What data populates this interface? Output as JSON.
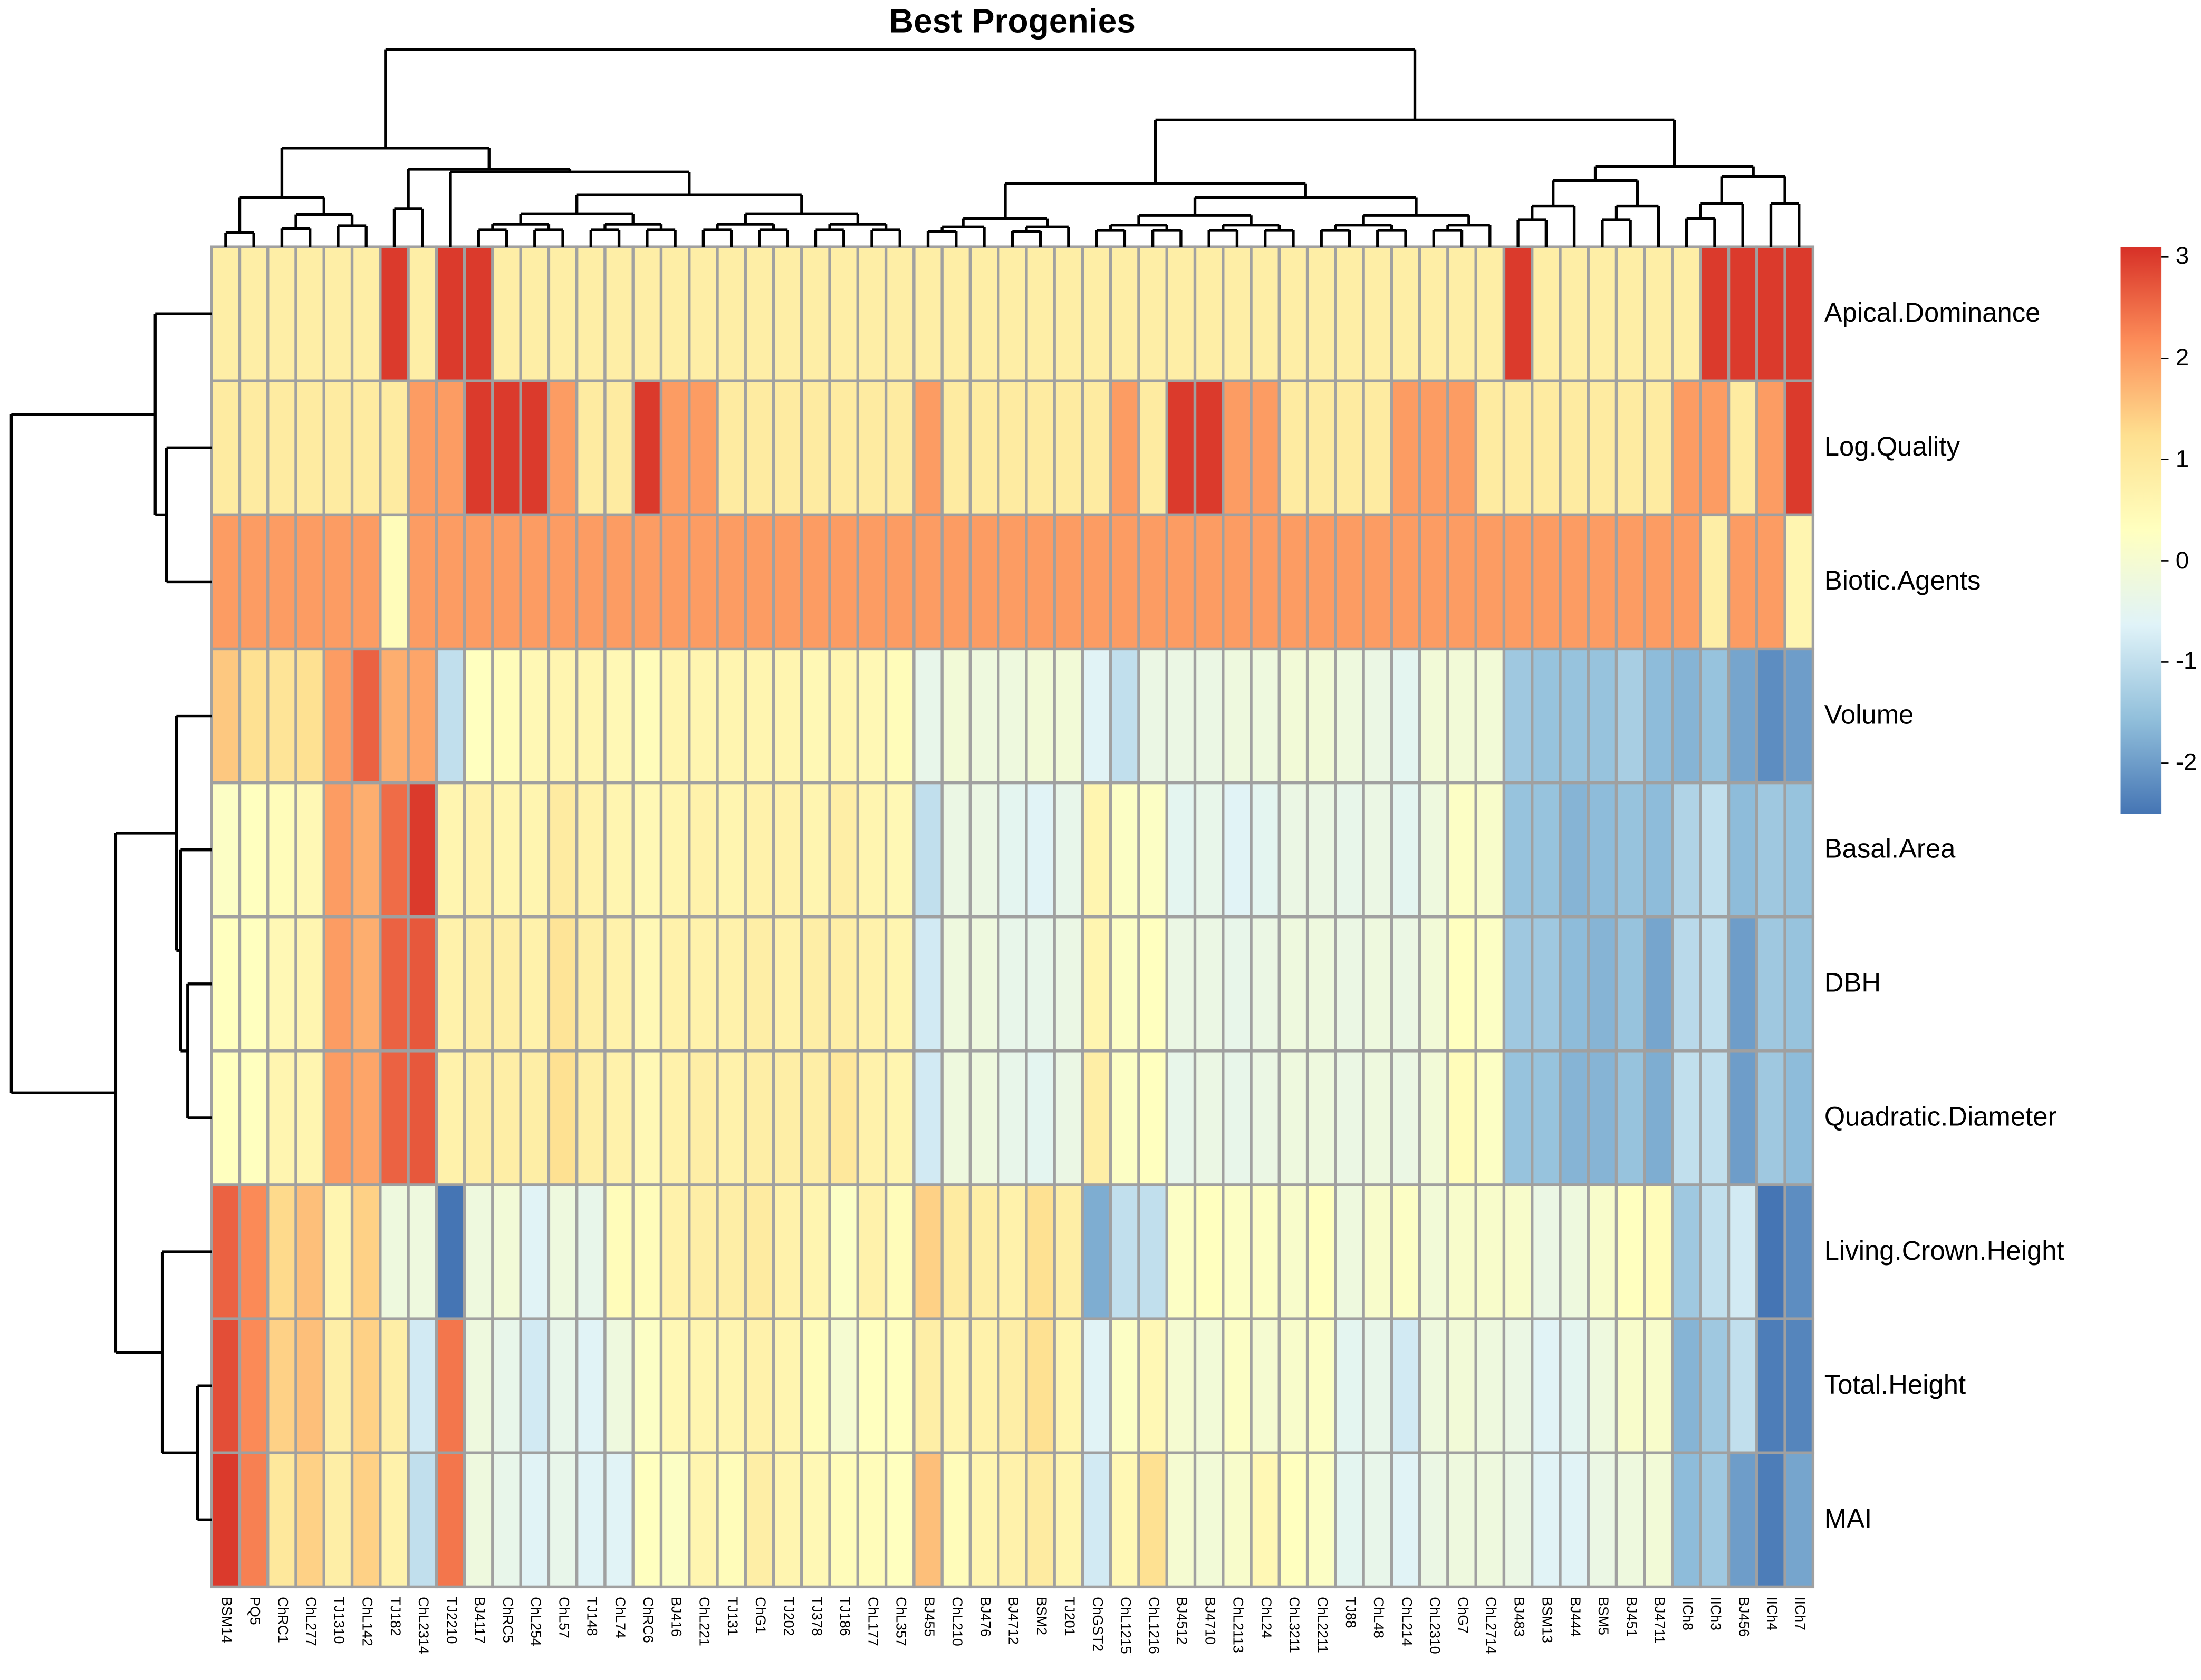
{
  "chart_data": {
    "type": "heatmap",
    "title": "Best Progenies",
    "columns": [
      "BSM14",
      "PQ5",
      "ChRC1",
      "ChL277",
      "TJ1310",
      "ChL142",
      "TJ182",
      "ChL2314",
      "TJ2210",
      "BJ4117",
      "ChRC5",
      "ChL254",
      "ChL57",
      "TJ148",
      "ChL74",
      "ChRC6",
      "BJ416",
      "ChL221",
      "TJ131",
      "ChG1",
      "TJ202",
      "TJ378",
      "TJ186",
      "ChL177",
      "ChL357",
      "BJ455",
      "ChL210",
      "BJ476",
      "BJ4712",
      "BSM2",
      "TJ201",
      "ChGST2",
      "ChL1215",
      "ChL1216",
      "BJ4512",
      "BJ4710",
      "ChL2113",
      "ChL24",
      "ChL3211",
      "ChL2211",
      "TJ88",
      "ChL48",
      "ChL214",
      "ChL2310",
      "ChG7",
      "ChL2714",
      "BJ483",
      "BSM13",
      "BJ444",
      "BSM5",
      "BJ451",
      "BJ4711",
      "IICh8",
      "IICh3",
      "BJ456",
      "IICh4",
      "IICh7"
    ],
    "rows": [
      "Apical.Dominance",
      "Log.Quality",
      "Biotic.Agents",
      "Volume",
      "Basal.Area",
      "DBH",
      "Quadratic.Diameter",
      "Living.Crown.Height",
      "Total.Height",
      "MAI"
    ],
    "values": [
      [
        0.8,
        0.8,
        0.8,
        0.8,
        0.8,
        0.8,
        3,
        0.8,
        3,
        3,
        0.8,
        0.8,
        0.8,
        0.8,
        0.8,
        0.8,
        0.8,
        0.8,
        0.8,
        0.8,
        0.8,
        0.8,
        0.8,
        0.8,
        0.8,
        0.8,
        0.8,
        0.8,
        0.8,
        0.8,
        0.8,
        0.8,
        0.8,
        0.8,
        0.8,
        0.8,
        0.8,
        0.8,
        0.8,
        0.8,
        0.8,
        0.8,
        0.8,
        0.8,
        0.8,
        0.8,
        3,
        0.8,
        0.8,
        0.8,
        0.8,
        0.8,
        0.8,
        3,
        3,
        3,
        3
      ],
      [
        0.9,
        0.9,
        0.9,
        0.9,
        0.9,
        0.9,
        0.9,
        2,
        2,
        3,
        3,
        3,
        2,
        0.9,
        0.9,
        3,
        2,
        2,
        0.9,
        0.9,
        0.9,
        0.9,
        0.9,
        0.9,
        0.9,
        2,
        0.9,
        0.9,
        0.9,
        0.9,
        0.9,
        0.9,
        2,
        0.9,
        3,
        3,
        2,
        2,
        0.9,
        0.9,
        0.9,
        0.9,
        2,
        2,
        2,
        0.9,
        0.9,
        0.9,
        0.9,
        0.9,
        0.9,
        0.9,
        2,
        2,
        0.9,
        2,
        3
      ],
      [
        2,
        2,
        2,
        2,
        2,
        2,
        0.4,
        2,
        2,
        2,
        2,
        2,
        2,
        2,
        2,
        2,
        2,
        2,
        2,
        2,
        2,
        2,
        2,
        2,
        2,
        2,
        2,
        2,
        2,
        2,
        2,
        2,
        2,
        2,
        2,
        2,
        2,
        2,
        2,
        2,
        2,
        2,
        2,
        2,
        2,
        2,
        2,
        2,
        2,
        2,
        2,
        2,
        2,
        0.8,
        2,
        2,
        0.6
      ],
      [
        1.5,
        1.2,
        1.1,
        1.2,
        2.0,
        2.6,
        1.8,
        1.9,
        -1.0,
        0.3,
        0.4,
        0.5,
        0.6,
        0.6,
        0.5,
        0.4,
        0.6,
        0.6,
        0.6,
        0.6,
        0.6,
        0.5,
        0.6,
        0.5,
        0.4,
        -0.4,
        -0.1,
        -0.2,
        -0.2,
        -0.1,
        -0.1,
        -0.6,
        -1.0,
        -0.3,
        -0.3,
        -0.3,
        -0.2,
        -0.2,
        -0.1,
        -0.1,
        -0.2,
        -0.3,
        -0.5,
        -0.1,
        -0.1,
        -0.1,
        -1.4,
        -1.5,
        -1.5,
        -1.5,
        -1.3,
        -1.6,
        -1.7,
        -1.5,
        -1.9,
        -2.2,
        -2.0
      ],
      [
        0.2,
        0.3,
        0.4,
        0.5,
        2.0,
        1.8,
        2.5,
        3.0,
        0.6,
        0.7,
        0.6,
        0.6,
        0.9,
        0.7,
        0.6,
        0.5,
        0.6,
        0.7,
        0.6,
        0.7,
        0.7,
        0.6,
        0.8,
        0.6,
        0.5,
        -1.0,
        -0.3,
        -0.3,
        -0.5,
        -0.6,
        -0.4,
        0.6,
        0.2,
        0.2,
        -0.5,
        -0.4,
        -0.6,
        -0.5,
        -0.3,
        -0.3,
        -0.4,
        -0.3,
        -0.5,
        -0.2,
        0.2,
        0.1,
        -1.5,
        -1.5,
        -1.7,
        -1.6,
        -1.5,
        -1.6,
        -1.2,
        -1.0,
        -1.6,
        -1.4,
        -1.5
      ],
      [
        0.3,
        0.3,
        0.5,
        0.6,
        2.0,
        1.8,
        2.6,
        2.7,
        0.7,
        0.8,
        0.8,
        0.7,
        1.1,
        0.8,
        0.7,
        0.5,
        0.7,
        0.7,
        0.7,
        0.8,
        0.7,
        0.8,
        0.8,
        0.7,
        0.6,
        -0.8,
        -0.2,
        -0.2,
        -0.4,
        -0.4,
        -0.3,
        0.6,
        0.2,
        0.3,
        -0.3,
        -0.3,
        -0.4,
        -0.3,
        -0.2,
        -0.2,
        -0.3,
        -0.2,
        -0.3,
        -0.1,
        0.3,
        0.2,
        -1.4,
        -1.4,
        -1.6,
        -1.7,
        -1.5,
        -1.9,
        -1.1,
        -1.0,
        -2.0,
        -1.4,
        -1.5
      ],
      [
        0.3,
        0.3,
        0.6,
        0.6,
        2.0,
        1.9,
        2.6,
        2.7,
        0.7,
        0.8,
        0.8,
        0.8,
        1.2,
        0.8,
        0.7,
        0.5,
        0.7,
        0.8,
        0.7,
        0.8,
        0.8,
        0.8,
        1.0,
        0.7,
        0.6,
        -0.8,
        -0.2,
        -0.2,
        -0.4,
        -0.5,
        -0.3,
        0.8,
        0.2,
        0.3,
        -0.4,
        -0.3,
        -0.4,
        -0.3,
        -0.2,
        -0.2,
        -0.3,
        -0.2,
        -0.3,
        -0.1,
        0.4,
        0.2,
        -1.5,
        -1.5,
        -1.7,
        -1.7,
        -1.5,
        -1.8,
        -1.0,
        -1.0,
        -2.0,
        -1.4,
        -1.6
      ],
      [
        2.6,
        2.2,
        1.3,
        1.6,
        0.6,
        1.4,
        -0.2,
        -0.2,
        -2.5,
        -0.2,
        -0.1,
        -0.6,
        -0.2,
        -0.4,
        0.4,
        0.4,
        0.7,
        0.8,
        0.8,
        0.9,
        0.7,
        0.6,
        0.2,
        0.7,
        0.4,
        1.4,
        0.9,
        0.8,
        0.7,
        1.2,
        0.8,
        -1.8,
        -1.0,
        -1.0,
        0.2,
        0.3,
        0.2,
        0.2,
        0.1,
        0.3,
        -0.2,
        0.1,
        0.2,
        -0.1,
        0.1,
        0.1,
        0.1,
        -0.3,
        -0.2,
        0.1,
        0.3,
        0.4,
        -1.4,
        -1.0,
        -0.8,
        -2.5,
        -2.2
      ],
      [
        2.8,
        2.2,
        1.4,
        1.6,
        0.8,
        1.4,
        0.8,
        -0.8,
        2.4,
        -0.2,
        -0.4,
        -0.8,
        -0.4,
        -0.6,
        -0.2,
        0.2,
        0.5,
        0.6,
        0.6,
        0.7,
        0.6,
        0.4,
        0.0,
        0.3,
        0.3,
        0.8,
        0.6,
        0.7,
        0.8,
        1.2,
        0.6,
        -0.6,
        0.2,
        0.5,
        0.0,
        -0.1,
        0.2,
        0.0,
        0.1,
        0.2,
        -0.5,
        -0.4,
        -0.8,
        -0.2,
        -0.1,
        -0.2,
        -0.3,
        -0.6,
        -0.5,
        -0.2,
        0.1,
        0.1,
        -1.7,
        -1.4,
        -1.0,
        -2.4,
        -2.3
      ],
      [
        3.0,
        2.3,
        1.0,
        1.4,
        0.8,
        1.4,
        0.7,
        -1.0,
        2.4,
        -0.2,
        -0.4,
        -0.6,
        -0.4,
        -0.6,
        -0.6,
        0.3,
        0.2,
        0.6,
        0.4,
        0.8,
        0.6,
        0.5,
        0.4,
        0.4,
        0.3,
        1.6,
        0.4,
        0.6,
        0.7,
        0.9,
        0.6,
        -0.8,
        0.5,
        1.2,
        0.0,
        -0.1,
        0.1,
        0.5,
        0.3,
        0.2,
        -0.5,
        -0.4,
        -0.6,
        -0.3,
        -0.2,
        -0.2,
        -0.3,
        -0.6,
        -0.6,
        -0.3,
        -0.2,
        -0.1,
        -1.6,
        -1.4,
        -2.0,
        -2.4,
        -1.9
      ]
    ],
    "color_range": [
      -2.5,
      3.1
    ],
    "palette": [
      "#4575B4",
      "#91BFDB",
      "#E0F3F8",
      "#FFFFBF",
      "#FEE090",
      "#FC8D59",
      "#D73027"
    ],
    "cell_border": "#A0A0A0",
    "legend": {
      "placement": "right",
      "ticks": [
        3,
        2,
        1,
        0,
        -1,
        -2
      ],
      "tick_labels": [
        "3",
        "2",
        "1",
        "0",
        "-1",
        "-2"
      ]
    }
  }
}
